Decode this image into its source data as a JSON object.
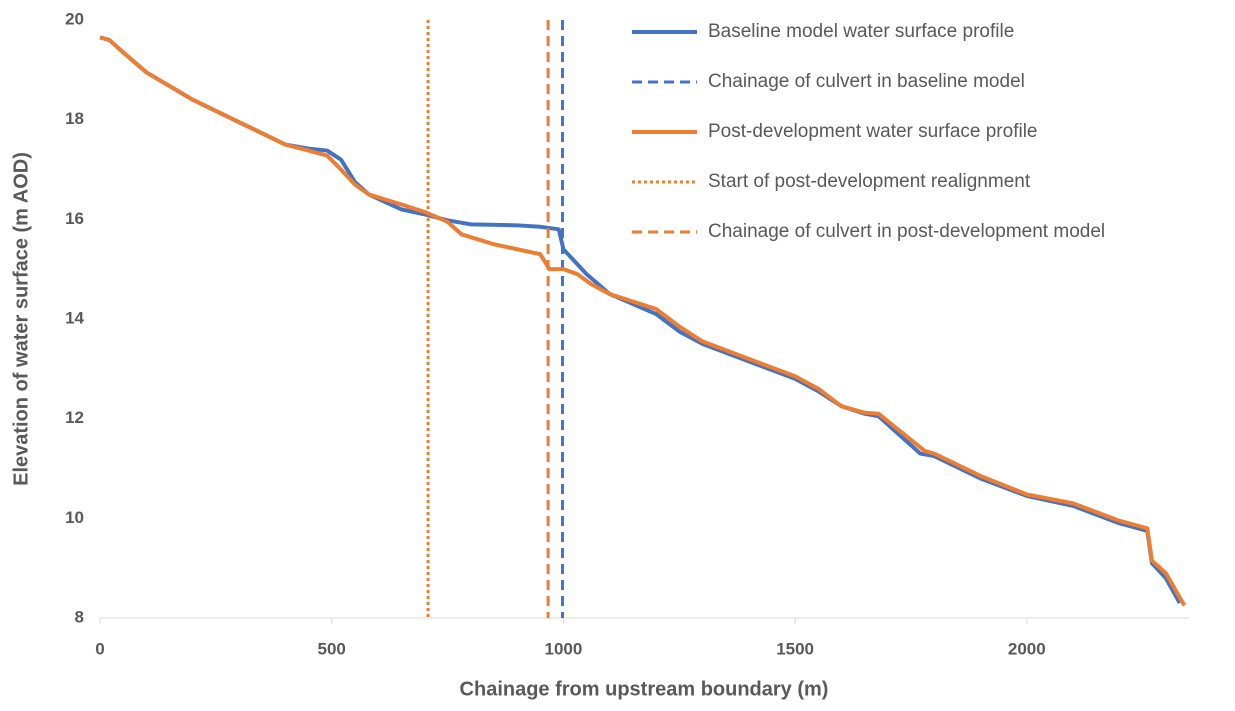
{
  "chart_data": {
    "type": "line",
    "xlabel": "Chainage from upstream boundary (m)",
    "ylabel": "Elevation of water surface (m AOD)",
    "xlim": [
      0,
      2350
    ],
    "ylim": [
      8,
      20
    ],
    "xticks": [
      0,
      500,
      1000,
      1500,
      2000
    ],
    "yticks": [
      8,
      10,
      12,
      14,
      16,
      18,
      20
    ],
    "legend": "top-right",
    "series": [
      {
        "name": "Baseline model water surface profile",
        "color": "#4472c4",
        "dash": "solid",
        "x": [
          0,
          20,
          50,
          100,
          200,
          300,
          400,
          450,
          490,
          520,
          550,
          580,
          650,
          700,
          750,
          800,
          900,
          950,
          990,
          1000,
          1050,
          1100,
          1200,
          1250,
          1300,
          1400,
          1500,
          1550,
          1600,
          1650,
          1680,
          1770,
          1800,
          1900,
          2000,
          2100,
          2200,
          2260,
          2270,
          2300,
          2330
        ],
        "values": [
          19.65,
          19.6,
          19.35,
          18.95,
          18.4,
          17.95,
          17.5,
          17.42,
          17.38,
          17.2,
          16.75,
          16.5,
          16.2,
          16.1,
          15.98,
          15.9,
          15.88,
          15.85,
          15.8,
          15.4,
          14.9,
          14.5,
          14.1,
          13.75,
          13.5,
          13.15,
          12.8,
          12.55,
          12.25,
          12.1,
          12.05,
          11.3,
          11.25,
          10.8,
          10.45,
          10.25,
          9.9,
          9.75,
          9.1,
          8.8,
          8.3
        ]
      },
      {
        "name": "Chainage of culvert in baseline model",
        "color": "#4472c4",
        "dash": "dashed",
        "x": [
          998,
          998
        ],
        "values": [
          20,
          8
        ]
      },
      {
        "name": "Post-development water surface profile",
        "color": "#ed7d31",
        "dash": "solid",
        "x": [
          0,
          20,
          50,
          100,
          200,
          300,
          400,
          450,
          490,
          520,
          550,
          580,
          650,
          700,
          750,
          780,
          850,
          900,
          950,
          970,
          1000,
          1030,
          1060,
          1100,
          1200,
          1250,
          1300,
          1400,
          1500,
          1550,
          1600,
          1650,
          1680,
          1780,
          1800,
          1900,
          2000,
          2100,
          2200,
          2260,
          2270,
          2300,
          2340
        ],
        "values": [
          19.65,
          19.6,
          19.35,
          18.95,
          18.4,
          17.95,
          17.5,
          17.38,
          17.28,
          17.0,
          16.7,
          16.5,
          16.3,
          16.15,
          15.95,
          15.7,
          15.5,
          15.4,
          15.3,
          15.0,
          15.0,
          14.9,
          14.7,
          14.5,
          14.2,
          13.85,
          13.55,
          13.2,
          12.85,
          12.6,
          12.25,
          12.12,
          12.1,
          11.35,
          11.3,
          10.85,
          10.48,
          10.3,
          9.95,
          9.8,
          9.15,
          8.9,
          8.25
        ]
      },
      {
        "name": "Start of post-development realignment",
        "color": "#ed7d31",
        "dash": "dotted",
        "x": [
          708,
          708
        ],
        "values": [
          20,
          8
        ]
      },
      {
        "name": "Chainage of culvert in post-development model",
        "color": "#ed7d31",
        "dash": "dashed",
        "x": [
          967,
          967
        ],
        "values": [
          20,
          8
        ]
      }
    ]
  }
}
